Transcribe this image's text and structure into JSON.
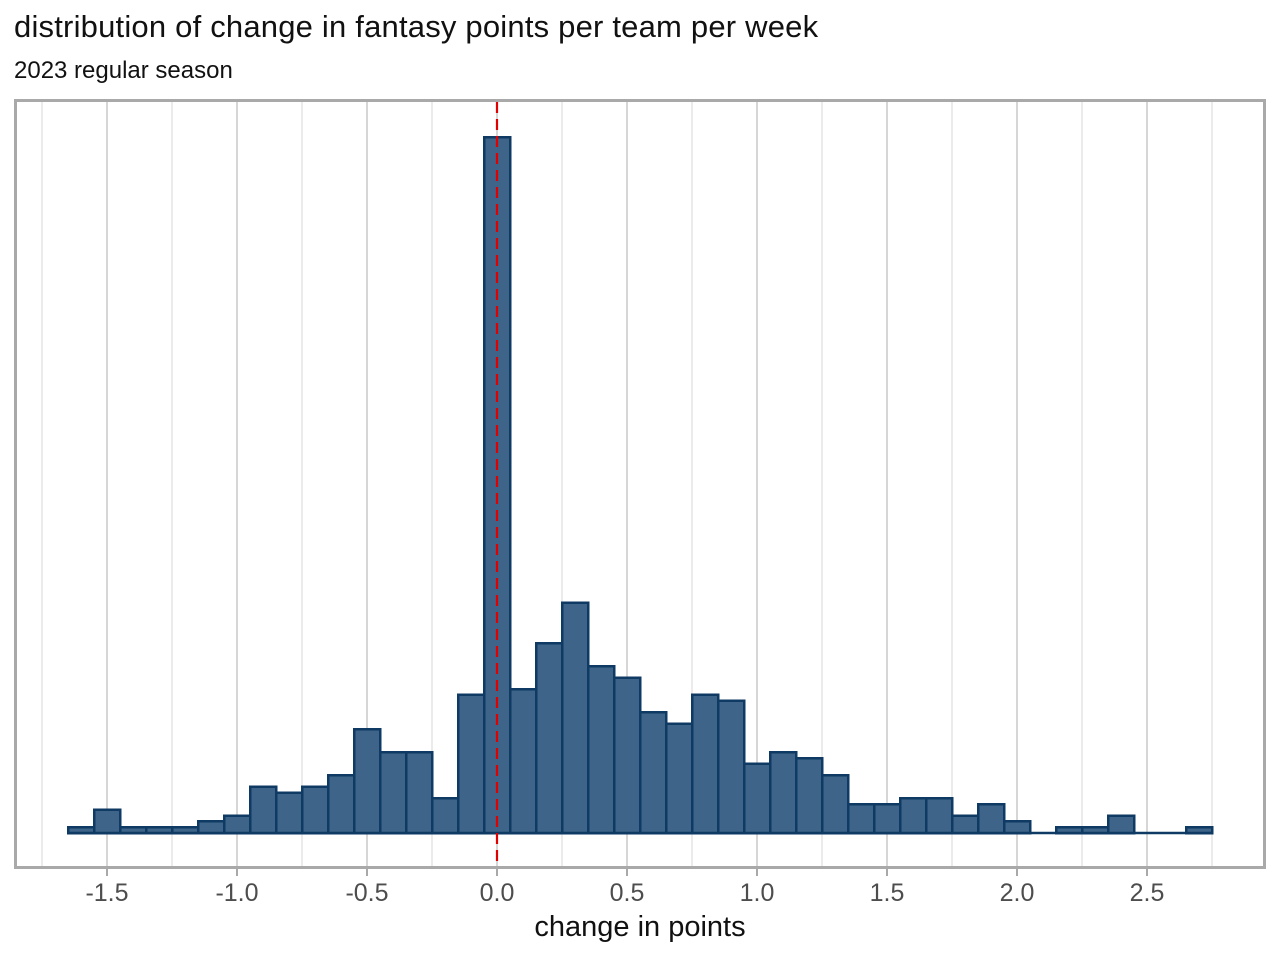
{
  "header": {
    "title": "distribution of change in fantasy points per team per week",
    "subtitle": "2023 regular season"
  },
  "chart_data": {
    "type": "bar",
    "subtype": "histogram",
    "title": "distribution of change in fantasy points per team per week",
    "subtitle": "2023 regular season",
    "xlabel": "change in points",
    "ylabel": "",
    "legend": "none",
    "grid": "vertical gridlines only, major every 0.5, minor every 0.25",
    "xlim": [
      -1.85,
      2.95
    ],
    "bin_width": 0.1,
    "bin_centers": [
      -1.6,
      -1.5,
      -1.4,
      -1.3,
      -1.2,
      -1.1,
      -1.0,
      -0.9,
      -0.8,
      -0.7,
      -0.6,
      -0.5,
      -0.4,
      -0.3,
      -0.2,
      -0.1,
      0.0,
      0.1,
      0.2,
      0.3,
      0.4,
      0.5,
      0.6,
      0.7,
      0.8,
      0.9,
      1.0,
      1.1,
      1.2,
      1.3,
      1.4,
      1.5,
      1.6,
      1.7,
      1.8,
      1.9,
      2.0,
      2.1,
      2.2,
      2.3,
      2.4,
      2.5,
      2.6,
      2.7
    ],
    "counts": [
      1,
      4,
      1,
      1,
      1,
      2,
      3,
      8,
      7,
      8,
      10,
      18,
      14,
      14,
      6,
      24,
      121,
      25,
      33,
      40,
      29,
      27,
      21,
      19,
      24,
      23,
      12,
      14,
      13,
      10,
      5,
      5,
      6,
      6,
      3,
      5,
      2,
      0,
      1,
      1,
      3,
      0,
      0,
      1
    ],
    "x_ticks": [
      -1.5,
      -1.0,
      -0.5,
      0.0,
      0.5,
      1.0,
      1.5,
      2.0,
      2.5
    ],
    "x_tick_labels": [
      "-1.5",
      "-1.0",
      "-0.5",
      "0.0",
      "0.5",
      "1.0",
      "1.5",
      "2.0",
      "2.5"
    ],
    "reference_line": {
      "x": 0.0,
      "style": "dashed",
      "color": "#e00000"
    },
    "colors": {
      "bar_fill": "#3e6489",
      "bar_stroke": "#0f3a63",
      "vline": "#e00000",
      "grid_major": "#d6d6d6",
      "grid_minor": "#ebebeb",
      "panel_border": "#a9a9a9",
      "tick_label": "#4d4d4d",
      "text": "#111111"
    }
  }
}
